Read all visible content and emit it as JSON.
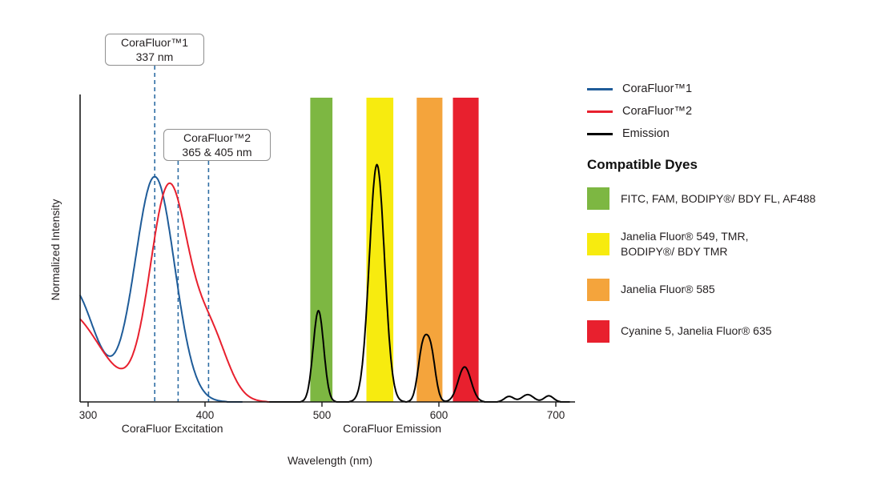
{
  "legend": {
    "items": [
      {
        "label": "CoraFluor™1",
        "color": "#1F5C99"
      },
      {
        "label": "CoraFluor™2",
        "color": "#E8202E"
      },
      {
        "label": "Emission",
        "color": "#000000"
      }
    ]
  },
  "dyes": {
    "title": "Compatible Dyes",
    "items": [
      {
        "color": "#7DB742",
        "label": "FITC, FAM, BODIPY®/ BDY FL, AF488"
      },
      {
        "color": "#F7EB0F",
        "label": "Janelia Fluor® 549, TMR,\nBODIPY®/ BDY TMR"
      },
      {
        "color": "#F4A43C",
        "label": "Janelia Fluor® 585"
      },
      {
        "color": "#E8202E",
        "label": "Cyanine 5, Janelia Fluor® 635"
      }
    ]
  },
  "chart_data": {
    "type": "line",
    "title": "",
    "xlabel": "Wavelength (nm)",
    "ylabel": "Normalized Intensity",
    "xlim": [
      293,
      715
    ],
    "ylim": [
      0,
      1.05
    ],
    "grid": false,
    "legend_position": "right",
    "x_ticks": [
      300,
      400,
      500,
      600,
      700
    ],
    "x_axis_section_labels": [
      {
        "text": "CoraFluor Excitation",
        "x_nm": 372
      },
      {
        "text": "CoraFluor Emission",
        "x_nm": 560
      }
    ],
    "bands": [
      {
        "name": "FITC-FAM-band",
        "x1": 490,
        "x2": 509,
        "color": "#7DB742"
      },
      {
        "name": "JF549-TMR-band",
        "x1": 538,
        "x2": 561,
        "color": "#F7EB0F"
      },
      {
        "name": "JF585-band",
        "x1": 581,
        "x2": 603,
        "color": "#F4A43C"
      },
      {
        "name": "Cy5-JF635-band",
        "x1": 612,
        "x2": 634,
        "color": "#E8202E"
      }
    ],
    "series": [
      {
        "name": "CoraFluor™1",
        "color": "#1F5C99",
        "x_range": [
          293,
          432
        ],
        "gaussians": [
          {
            "mu": 285,
            "sigma": 20,
            "amp": 0.38
          },
          {
            "mu": 357,
            "sigma": 17,
            "amp": 0.74
          }
        ]
      },
      {
        "name": "CoraFluor™2",
        "color": "#E8202E",
        "x_range": [
          293,
          478
        ],
        "gaussians": [
          {
            "mu": 280,
            "sigma": 30,
            "amp": 0.3
          },
          {
            "mu": 369,
            "sigma": 16,
            "amp": 0.7
          },
          {
            "mu": 404,
            "sigma": 15,
            "amp": 0.22
          }
        ]
      },
      {
        "name": "Emission",
        "color": "#000000",
        "x_range": [
          455,
          712
        ],
        "gaussians": [
          {
            "mu": 497,
            "sigma": 4.5,
            "amp": 0.3
          },
          {
            "mu": 547,
            "sigma": 6.5,
            "amp": 0.78
          },
          {
            "mu": 586,
            "sigma": 4,
            "amp": 0.165
          },
          {
            "mu": 593,
            "sigma": 4,
            "amp": 0.16
          },
          {
            "mu": 622,
            "sigma": 5.5,
            "amp": 0.115
          },
          {
            "mu": 660,
            "sigma": 4,
            "amp": 0.018
          },
          {
            "mu": 676,
            "sigma": 5,
            "amp": 0.024
          },
          {
            "mu": 694,
            "sigma": 4,
            "amp": 0.02
          }
        ]
      }
    ],
    "markers": [
      {
        "label": [
          "CoraFluor™1",
          "337 nm"
        ],
        "lines_x": [
          357
        ]
      },
      {
        "label": [
          "CoraFluor™2",
          "365 & 405 nm"
        ],
        "lines_x": [
          377,
          403
        ]
      }
    ]
  }
}
